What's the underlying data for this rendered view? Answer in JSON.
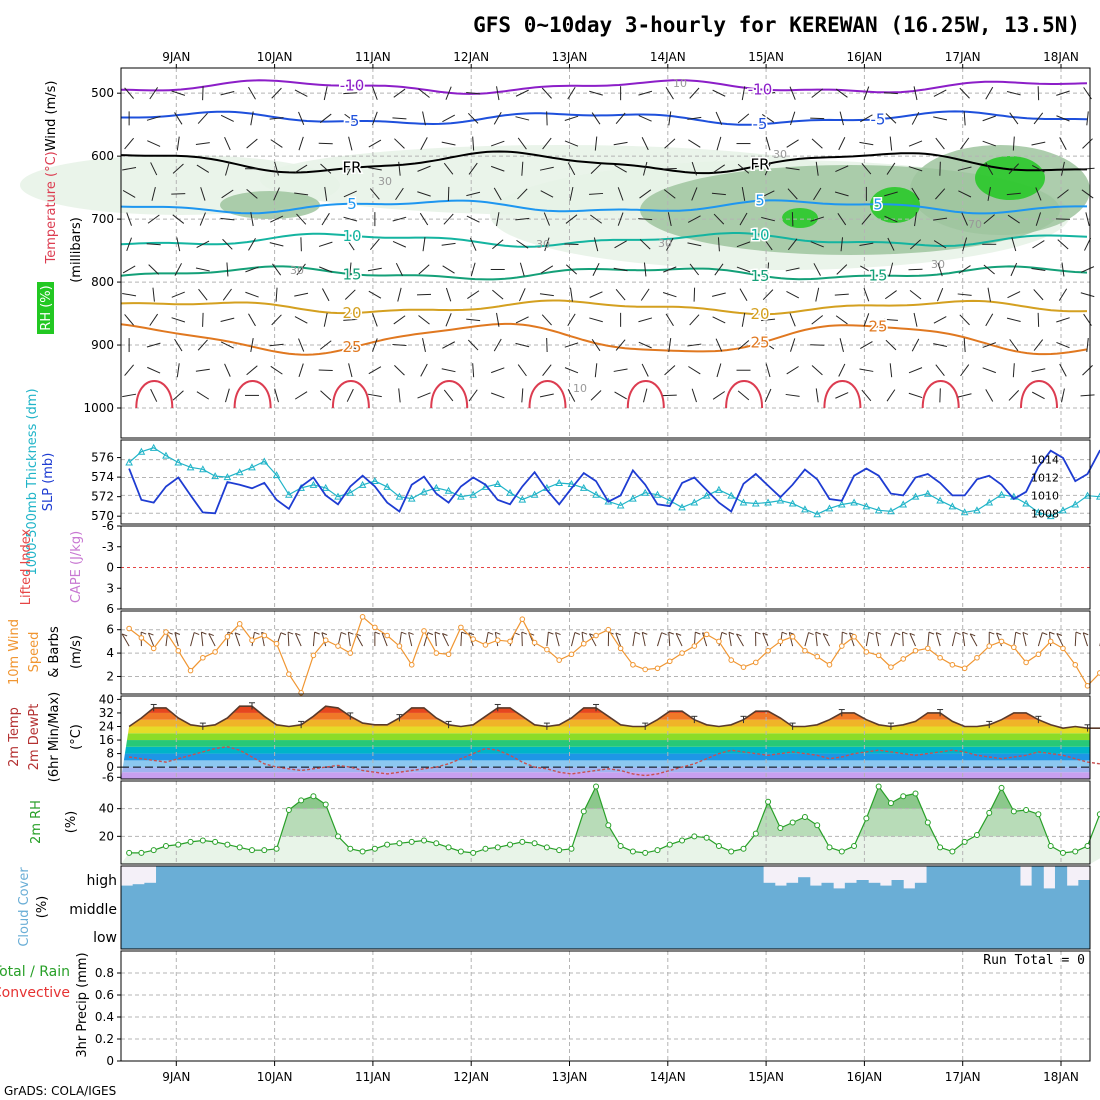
{
  "page_title": "GFS 0~10day 3-hourly for KEREWAN (16.25W, 13.5N)",
  "credit": "GrADS: COLA/IGES",
  "colors": {
    "frame": "#000000",
    "grid": "#b4b4b4",
    "temp_500": "#8c1ec8",
    "temp_neg5": "#1e50dc",
    "temp_freezing": "#000000",
    "temp_5": "#1e96f0",
    "temp_10": "#14b4a0",
    "temp_15": "#14a078",
    "temp_20": "#d4a020",
    "temp_25": "#e07820",
    "temp_30": "#dc3c50",
    "rh_low": "#e6f2e6",
    "rh_mid": "#9fc49f",
    "rh_high": "#22c822",
    "slp": "#1e3cd2",
    "thickness": "#20b4c8",
    "lifted_index": "#e64646",
    "cape": "#c878d2",
    "wind": "#f09632",
    "barb": "#5a3a2a",
    "temp_fill_hot": "#e6321e",
    "temp_line": "#5a3a2a",
    "dewpt_line": "#c85050",
    "rh_line": "#28a028",
    "rh_fill": "#8cc88c",
    "cloud": "#6aaed6",
    "precip_total": "#28a028",
    "precip_conv": "#e63232"
  },
  "chart_data": {
    "type": "meteogram",
    "time_axis": {
      "dates": [
        "9JAN",
        "10JAN",
        "11JAN",
        "12JAN",
        "13JAN",
        "14JAN",
        "15JAN",
        "16JAN",
        "17JAN",
        "18JAN"
      ],
      "interval_hours": 3,
      "start_day_offset": -0.48,
      "end_day_offset": 9.2
    },
    "panels": [
      {
        "id": "upper_air",
        "ylabel_parts": [
          "RH (%)",
          "Temperature (°C)",
          "Wind (m/s)"
        ],
        "yunit": "(millibars)",
        "yticks": [
          "500",
          "600",
          "700",
          "800",
          "900",
          "1000"
        ],
        "ylim": [
          460,
          1000
        ],
        "temperature_contours": [
          {
            "value": -10,
            "label": "-10",
            "p_mean": 490
          },
          {
            "value": -5,
            "label": "-5",
            "p_mean": 540
          },
          {
            "value": 0,
            "label": "FR",
            "p_mean": 610
          },
          {
            "value": 5,
            "label": "5",
            "p_mean": 680
          },
          {
            "value": 10,
            "label": "10",
            "p_mean": 733
          },
          {
            "value": 15,
            "label": "15",
            "p_mean": 786
          },
          {
            "value": 20,
            "label": "20",
            "p_mean": 840
          },
          {
            "value": 25,
            "label": "25",
            "p_mean": 890
          }
        ],
        "rh_contour_labels": [
          "10",
          "30",
          "30",
          "30",
          "30",
          "30",
          "10",
          "70",
          "30"
        ]
      },
      {
        "id": "slp_thickness",
        "ylabel_left": "1000-500mb Thickness (dm)",
        "ylabel_right": "SLP (mb)",
        "left_ticks": [
          "570",
          "572",
          "574",
          "576"
        ],
        "right_ticks": [
          "1008",
          "1010",
          "1012",
          "1014"
        ],
        "slp_mb": [
          1013.0,
          1009.5,
          1009.2,
          1011.0,
          1012.0,
          1010.0,
          1008.1,
          1008.0,
          1011.5,
          1011.2,
          1010.8,
          1011.4,
          1009.5,
          1008.5,
          1011.0,
          1012.0,
          1010.0,
          1009.0,
          1011.0,
          1012.2,
          1011.0,
          1009.2,
          1008.2,
          1011.2,
          1012.1,
          1010.2,
          1009.2,
          1011.0,
          1012.0,
          1011.2,
          1009.5,
          1009.0,
          1011.0,
          1012.6,
          1010.6,
          1009.0,
          1010.8,
          1012.5,
          1011.6,
          1009.3,
          1010.0,
          1012.8,
          1011.2,
          1009.0,
          1008.8,
          1011.4,
          1012.0,
          1010.6,
          1009.2,
          1008.2,
          1011.3,
          1012.4,
          1011.1,
          1009.8,
          1011.2,
          1012.9,
          1011.8,
          1009.6,
          1009.4,
          1012.2,
          1013.0,
          1012.2,
          1010.2,
          1010.0,
          1012.0,
          1012.4,
          1011.4,
          1010.0,
          1010.0,
          1011.8,
          1012.2,
          1011.2,
          1009.6,
          1010.4,
          1013.2,
          1015.0,
          1014.2,
          1011.6,
          1012.4,
          1015.0,
          1014.8,
          1013.0,
          1013.0
        ],
        "thickness_dm": [
          575.5,
          576.6,
          577.0,
          576.2,
          575.5,
          575.0,
          574.8,
          574.1,
          574.0,
          574.5,
          575.0,
          575.6,
          574.2,
          572.2,
          572.9,
          573.2,
          572.9,
          572.0,
          572.4,
          573.2,
          573.6,
          573.0,
          572.0,
          571.8,
          572.5,
          572.9,
          572.6,
          572.0,
          572.2,
          573.0,
          573.3,
          572.4,
          571.7,
          572.2,
          572.9,
          573.4,
          573.3,
          572.9,
          572.2,
          571.5,
          571.1,
          571.8,
          572.4,
          572.2,
          571.6,
          570.9,
          571.4,
          572.1,
          572.7,
          572.1,
          571.4,
          571.3,
          571.4,
          571.6,
          571.3,
          570.7,
          570.2,
          570.8,
          571.2,
          571.4,
          571.0,
          570.6,
          570.5,
          571.2,
          572.0,
          572.3,
          571.6,
          571.0,
          570.4,
          570.6,
          571.4,
          572.2,
          572.0,
          571.3,
          570.4,
          570.0,
          570.6,
          571.2,
          572.1,
          572.0,
          572.1,
          572.8,
          572.0
        ]
      },
      {
        "id": "instability",
        "ylabel_left": "Lifted Index",
        "ylabel_right": "CAPE (J/kg)",
        "yticks": [
          "-6",
          "-3",
          "0",
          "3",
          "6"
        ],
        "lifted_index_note": "no data",
        "cape_note": "no data"
      },
      {
        "id": "wind10m",
        "ylabel": "10m Wind Speed & Barbs (m/s)",
        "ylabel_parts": [
          "10m Wind",
          "Speed",
          "& Barbs",
          "(m/s)"
        ],
        "yticks": [
          "2",
          "4",
          "6"
        ],
        "ylim": [
          0.5,
          7.6
        ],
        "speed_ms": [
          6.1,
          5.3,
          4.4,
          5.8,
          4.2,
          2.5,
          3.6,
          4.1,
          5.4,
          6.5,
          5.1,
          5.5,
          4.8,
          2.2,
          0.6,
          3.8,
          5.1,
          4.6,
          4.0,
          7.1,
          6.2,
          5.5,
          4.6,
          3.0,
          5.9,
          4.0,
          3.9,
          6.2,
          5.2,
          4.7,
          5.1,
          5.0,
          6.9,
          4.9,
          4.3,
          3.4,
          3.9,
          4.8,
          5.5,
          6.0,
          4.4,
          3.0,
          2.6,
          2.7,
          3.3,
          4.0,
          4.6,
          5.6,
          5.0,
          3.4,
          2.8,
          3.2,
          4.2,
          5.0,
          5.4,
          4.2,
          3.7,
          3.0,
          4.6,
          5.4,
          4.1,
          3.8,
          2.8,
          3.5,
          4.2,
          4.4,
          3.6,
          3.0,
          2.7,
          3.6,
          4.6,
          5.0,
          4.5,
          3.2,
          3.9,
          5.0,
          4.4,
          3.0,
          1.2,
          2.3,
          2.3,
          2.4,
          4.2
        ]
      },
      {
        "id": "temp2m",
        "ylabel_parts": [
          "2m Temp",
          "2m DewPt",
          "(6hr Min/Max)",
          "(°C)"
        ],
        "yticks": [
          "-6",
          "0",
          "8",
          "16",
          "24",
          "32",
          "40"
        ],
        "ylim": [
          -7,
          42
        ],
        "temp_c": [
          24,
          29,
          35,
          35,
          29,
          25,
          24,
          25,
          29,
          36,
          36,
          30,
          25,
          24,
          25,
          30,
          36,
          35,
          30,
          26,
          25,
          25,
          29,
          35,
          35,
          29,
          25,
          24,
          25,
          30,
          35,
          35,
          30,
          25,
          24,
          25,
          29,
          35,
          35,
          30,
          25,
          24,
          24,
          28,
          33,
          33,
          28,
          25,
          24,
          25,
          28,
          33,
          33,
          29,
          24,
          24,
          25,
          28,
          32,
          32,
          28,
          25,
          24,
          25,
          27,
          32,
          32,
          27,
          24,
          24,
          25,
          28,
          32,
          32,
          28,
          25,
          23,
          24,
          23,
          23,
          22,
          22,
          22
        ],
        "dewpoint_c": [
          6,
          5,
          4,
          3,
          5,
          7,
          9,
          11,
          12,
          10,
          6,
          2,
          0,
          -1,
          -2,
          -1,
          0,
          1,
          0,
          -2,
          -3,
          -4,
          -3,
          -2,
          -1,
          0,
          2,
          5,
          8,
          11,
          10,
          7,
          3,
          0,
          -1,
          -3,
          -4,
          -3,
          -2,
          -1,
          -2,
          -4,
          -5,
          -4,
          -2,
          0,
          2,
          5,
          8,
          10,
          9,
          8,
          7,
          8,
          9,
          8,
          7,
          5,
          6,
          8,
          9,
          10,
          9,
          8,
          7,
          8,
          9,
          10,
          9,
          7,
          6,
          5,
          6,
          7,
          9,
          8,
          7,
          5,
          3,
          2,
          1,
          0,
          -1
        ]
      },
      {
        "id": "rh2m",
        "ylabel": "2m RH",
        "yunit": "(%)",
        "yticks": [
          "20",
          "40"
        ],
        "ylim": [
          0,
          60
        ],
        "rh_pct": [
          8,
          8,
          10,
          13,
          14,
          16,
          17,
          16,
          14,
          12,
          10,
          10,
          11,
          39,
          46,
          49,
          43,
          20,
          11,
          9,
          11,
          14,
          15,
          16,
          17,
          15,
          12,
          9,
          8,
          11,
          12,
          14,
          16,
          15,
          12,
          10,
          11,
          38,
          56,
          28,
          13,
          9,
          8,
          10,
          14,
          17,
          20,
          19,
          13,
          9,
          11,
          22,
          45,
          26,
          30,
          34,
          28,
          12,
          9,
          13,
          33,
          56,
          44,
          49,
          51,
          30,
          12,
          9,
          16,
          21,
          37,
          55,
          38,
          39,
          36,
          13,
          8,
          9,
          13,
          36,
          43,
          30,
          19
        ]
      },
      {
        "id": "cloud",
        "ylabel": "Cloud Cover",
        "yunit": "(%)",
        "level_labels": [
          "high",
          "middle",
          "low"
        ],
        "high_pct": [
          30,
          35,
          40,
          100,
          100,
          100,
          100,
          100,
          100,
          100,
          100,
          100,
          100,
          100,
          100,
          100,
          100,
          100,
          100,
          100,
          100,
          100,
          100,
          100,
          100,
          100,
          100,
          100,
          100,
          100,
          100,
          100,
          100,
          100,
          100,
          100,
          100,
          100,
          100,
          100,
          100,
          100,
          100,
          100,
          100,
          100,
          100,
          100,
          100,
          100,
          100,
          100,
          100,
          100,
          100,
          40,
          30,
          40,
          60,
          30,
          40,
          20,
          40,
          50,
          40,
          30,
          50,
          20,
          40,
          100,
          100,
          100,
          100,
          100,
          100,
          100,
          100,
          30,
          100,
          20,
          100,
          30,
          50
        ],
        "middle_pct": [
          100,
          100,
          100,
          100,
          100,
          100,
          100,
          100,
          100,
          100,
          100,
          100,
          100,
          100,
          100,
          100,
          100,
          100,
          100,
          100,
          100,
          100,
          100,
          100,
          100,
          100,
          100,
          100,
          100,
          100,
          100,
          100,
          100,
          100,
          100,
          100,
          100,
          100,
          100,
          100,
          100,
          100,
          100,
          100,
          100,
          100,
          100,
          100,
          100,
          100,
          100,
          100,
          100,
          100,
          100,
          100,
          100,
          100,
          100,
          100,
          100,
          100,
          100,
          100,
          100,
          100,
          100,
          100,
          100,
          100,
          100,
          100,
          100,
          100,
          100,
          100,
          100,
          100,
          100,
          100,
          100,
          100,
          100
        ],
        "low_pct": [
          100,
          100,
          100,
          100,
          100,
          100,
          100,
          100,
          100,
          100,
          100,
          100,
          100,
          100,
          100,
          100,
          100,
          100,
          100,
          100,
          100,
          100,
          100,
          100,
          100,
          100,
          100,
          100,
          100,
          100,
          100,
          100,
          100,
          100,
          100,
          100,
          100,
          100,
          100,
          100,
          100,
          100,
          100,
          100,
          100,
          100,
          100,
          100,
          100,
          100,
          100,
          100,
          100,
          100,
          100,
          100,
          100,
          100,
          100,
          100,
          100,
          100,
          100,
          100,
          100,
          100,
          100,
          100,
          100,
          100,
          100,
          100,
          100,
          100,
          100,
          100,
          100,
          100,
          100,
          100,
          100,
          100,
          100
        ]
      },
      {
        "id": "precip",
        "ylabel_left_total": "Total / Rain",
        "ylabel_left_conv": "Convective",
        "ylabel": "3hr Precip (mm)",
        "yticks": [
          "0",
          "0.2",
          "0.4",
          "0.6",
          "0.8"
        ],
        "ylim": [
          0,
          1.0
        ],
        "run_total_label": "Run Total = 0",
        "precip_mm": []
      }
    ]
  }
}
